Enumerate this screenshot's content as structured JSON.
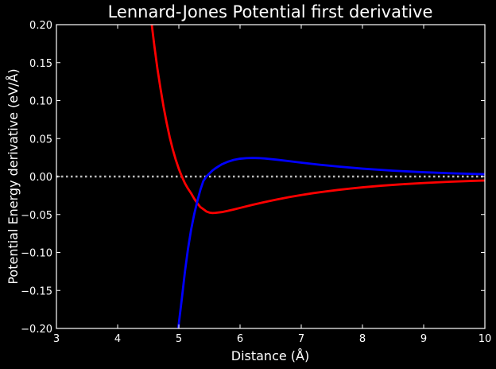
{
  "chart_data": {
    "type": "line",
    "title": "Lennard-Jones Potential first derivative",
    "xlabel": "Distance (Å)",
    "ylabel": "Potential Energy derivative (eV/Å)",
    "xlim": [
      3,
      10
    ],
    "ylim": [
      -0.2,
      0.2
    ],
    "xticks": [
      "3",
      "4",
      "5",
      "6",
      "7",
      "8",
      "9",
      "10"
    ],
    "yticks": [
      "−0.20",
      "−0.15",
      "−0.10",
      "−0.05",
      "0.00",
      "0.05",
      "0.10",
      "0.15",
      "0.20"
    ],
    "grid": false,
    "background": "#000000",
    "reference_line": {
      "y": 0,
      "style": "dotted",
      "color": "#bbbbbb"
    },
    "series": [
      {
        "color": "#ff0000",
        "x": [
          4.55,
          4.6,
          4.65,
          4.7,
          4.75,
          4.8,
          4.85,
          4.9,
          4.95,
          5.0,
          5.05,
          5.1,
          5.15,
          5.2,
          5.25,
          5.3,
          5.35,
          5.4,
          5.45,
          5.5,
          5.55,
          5.6,
          5.7,
          5.8,
          5.9,
          6.0,
          6.2,
          6.4,
          6.6,
          6.8,
          7.0,
          7.2,
          7.4,
          7.6,
          7.8,
          8.0,
          8.3,
          8.6,
          9.0,
          9.4,
          9.8,
          10.0
        ],
        "y": [
          0.205,
          0.172,
          0.142,
          0.116,
          0.092,
          0.071,
          0.052,
          0.036,
          0.022,
          0.01,
          0.0,
          -0.009,
          -0.016,
          -0.022,
          -0.029,
          -0.035,
          -0.04,
          -0.043,
          -0.046,
          -0.0475,
          -0.048,
          -0.0478,
          -0.0468,
          -0.0452,
          -0.0433,
          -0.0413,
          -0.0373,
          -0.0336,
          -0.0302,
          -0.0271,
          -0.0243,
          -0.0218,
          -0.0196,
          -0.0176,
          -0.0158,
          -0.0142,
          -0.0121,
          -0.0104,
          -0.0085,
          -0.0069,
          -0.0057,
          -0.0052
        ]
      },
      {
        "color": "#0000ff",
        "x": [
          4.99,
          5.05,
          5.1,
          5.15,
          5.2,
          5.25,
          5.3,
          5.35,
          5.4,
          5.45,
          5.5,
          5.55,
          5.6,
          5.7,
          5.8,
          5.9,
          6.0,
          6.1,
          6.2,
          6.3,
          6.4,
          6.6,
          6.8,
          7.0,
          7.3,
          7.6,
          8.0,
          8.5,
          9.0,
          9.5,
          10.0
        ],
        "y": [
          -0.2,
          -0.16,
          -0.125,
          -0.095,
          -0.07,
          -0.05,
          -0.033,
          -0.018,
          -0.006,
          0.0,
          0.004,
          0.008,
          0.011,
          0.016,
          0.0195,
          0.022,
          0.0235,
          0.0242,
          0.0245,
          0.0243,
          0.0238,
          0.0222,
          0.0203,
          0.0183,
          0.0156,
          0.0132,
          0.0104,
          0.0077,
          0.0057,
          0.0042,
          0.0031
        ]
      }
    ]
  }
}
